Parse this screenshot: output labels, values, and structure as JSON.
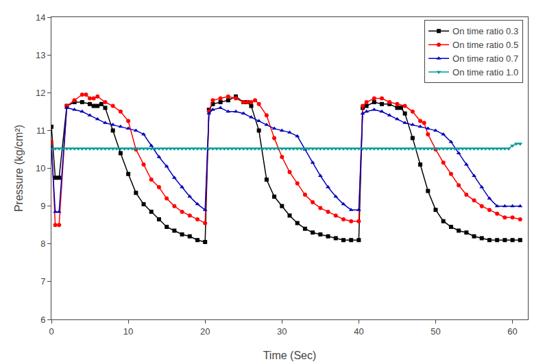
{
  "chart_data": {
    "type": "line",
    "xlabel": "Time (Sec)",
    "ylabel": "Pressure (kg/cm²)",
    "xlim": [
      0,
      62
    ],
    "ylim": [
      6,
      14
    ],
    "xticks": [
      0,
      10,
      20,
      30,
      40,
      50,
      60
    ],
    "yticks": [
      6,
      7,
      8,
      9,
      10,
      11,
      12,
      13,
      14
    ],
    "grid": false,
    "legend": "upper right",
    "series": [
      {
        "name": "On time ratio 0.3",
        "color": "#000000",
        "marker": "square",
        "x": [
          0.0,
          0.5,
          1.0,
          2.0,
          3.0,
          4.0,
          5.0,
          5.5,
          6.0,
          6.5,
          7.0,
          8.0,
          9.0,
          10.0,
          11.0,
          12.0,
          13.0,
          14.0,
          15.0,
          16.0,
          17.0,
          18.0,
          19.0,
          20.0,
          20.5,
          21.0,
          22.0,
          23.0,
          24.0,
          25.0,
          25.5,
          26.0,
          27.0,
          28.0,
          29.0,
          30.0,
          31.0,
          32.0,
          33.0,
          34.0,
          35.0,
          36.0,
          37.0,
          38.0,
          39.0,
          40.0,
          40.5,
          41.0,
          42.0,
          43.0,
          44.0,
          45.0,
          45.5,
          46.0,
          47.0,
          48.0,
          49.0,
          50.0,
          51.0,
          52.0,
          53.0,
          54.0,
          55.0,
          56.0,
          57.0,
          58.0,
          59.0,
          60.0,
          61.0
        ],
        "values": [
          11.1,
          9.75,
          9.75,
          11.65,
          11.75,
          11.75,
          11.7,
          11.65,
          11.65,
          11.7,
          11.6,
          11.0,
          10.4,
          9.85,
          9.35,
          9.05,
          8.85,
          8.65,
          8.45,
          8.35,
          8.25,
          8.2,
          8.1,
          8.05,
          11.55,
          11.7,
          11.75,
          11.8,
          11.9,
          11.75,
          11.75,
          11.65,
          11.0,
          9.7,
          9.25,
          9.0,
          8.75,
          8.55,
          8.4,
          8.3,
          8.25,
          8.2,
          8.15,
          8.1,
          8.1,
          8.1,
          11.6,
          11.65,
          11.75,
          11.7,
          11.7,
          11.6,
          11.6,
          11.45,
          10.8,
          10.1,
          9.4,
          8.9,
          8.6,
          8.45,
          8.35,
          8.3,
          8.2,
          8.15,
          8.1,
          8.1,
          8.1,
          8.1,
          8.1
        ]
      },
      {
        "name": "On time ratio 0.5",
        "color": "#ff0000",
        "marker": "circle",
        "x": [
          0.0,
          0.5,
          1.0,
          2.0,
          3.0,
          4.0,
          4.5,
          5.0,
          5.5,
          6.0,
          7.0,
          8.0,
          9.0,
          10.0,
          11.0,
          12.0,
          13.0,
          14.0,
          15.0,
          16.0,
          17.0,
          18.0,
          19.0,
          20.0,
          20.5,
          21.0,
          22.0,
          23.0,
          24.0,
          25.0,
          25.5,
          26.0,
          26.5,
          27.0,
          28.0,
          29.0,
          30.0,
          31.0,
          32.0,
          33.0,
          34.0,
          35.0,
          36.0,
          37.0,
          38.0,
          39.0,
          40.0,
          40.5,
          41.0,
          42.0,
          43.0,
          44.0,
          45.0,
          46.0,
          47.0,
          48.0,
          48.5,
          49.0,
          50.0,
          51.0,
          52.0,
          53.0,
          54.0,
          55.0,
          56.0,
          57.0,
          58.0,
          59.0,
          60.0,
          61.0
        ],
        "values": [
          10.7,
          8.5,
          8.5,
          11.65,
          11.8,
          11.95,
          11.95,
          11.85,
          11.85,
          11.9,
          11.75,
          11.65,
          11.5,
          11.25,
          10.5,
          10.1,
          9.7,
          9.5,
          9.2,
          9.0,
          8.85,
          8.75,
          8.65,
          8.55,
          11.5,
          11.8,
          11.85,
          11.9,
          11.85,
          11.75,
          11.75,
          11.75,
          11.8,
          11.7,
          11.4,
          10.8,
          10.3,
          9.9,
          9.6,
          9.3,
          9.1,
          8.95,
          8.85,
          8.75,
          8.65,
          8.6,
          8.6,
          11.65,
          11.75,
          11.85,
          11.85,
          11.75,
          11.7,
          11.65,
          11.5,
          11.25,
          11.2,
          10.9,
          10.5,
          10.15,
          9.85,
          9.55,
          9.3,
          9.15,
          9.0,
          8.9,
          8.8,
          8.7,
          8.7,
          8.65
        ]
      },
      {
        "name": "On time ratio 0.7",
        "color": "#0000bb",
        "marker": "triangle-up",
        "x": [
          0.0,
          0.5,
          1.0,
          2.0,
          3.0,
          4.0,
          5.0,
          6.0,
          7.0,
          8.0,
          9.0,
          10.0,
          11.0,
          12.0,
          13.0,
          14.0,
          15.0,
          16.0,
          17.0,
          18.0,
          19.0,
          20.0,
          20.5,
          21.0,
          22.0,
          23.0,
          24.0,
          25.0,
          26.0,
          27.0,
          28.0,
          29.0,
          30.0,
          31.0,
          32.0,
          33.0,
          34.0,
          35.0,
          36.0,
          37.0,
          38.0,
          39.0,
          40.0,
          40.5,
          41.0,
          42.0,
          43.0,
          44.0,
          45.0,
          46.0,
          47.0,
          48.0,
          49.0,
          50.0,
          51.0,
          52.0,
          53.0,
          54.0,
          55.0,
          56.0,
          57.0,
          58.0,
          59.0,
          60.0,
          61.0
        ],
        "values": [
          10.55,
          8.85,
          8.85,
          11.6,
          11.55,
          11.5,
          11.4,
          11.3,
          11.2,
          11.15,
          11.1,
          11.05,
          11.0,
          10.9,
          10.6,
          10.3,
          10.05,
          9.75,
          9.5,
          9.25,
          9.05,
          8.9,
          11.45,
          11.55,
          11.6,
          11.5,
          11.5,
          11.45,
          11.35,
          11.25,
          11.15,
          11.05,
          11.0,
          10.95,
          10.85,
          10.5,
          10.15,
          9.8,
          9.5,
          9.25,
          9.05,
          8.9,
          8.9,
          11.45,
          11.5,
          11.55,
          11.5,
          11.4,
          11.3,
          11.2,
          11.15,
          11.1,
          11.05,
          11.0,
          10.9,
          10.7,
          10.4,
          10.1,
          9.8,
          9.5,
          9.2,
          9.0,
          9.0,
          9.0,
          9.0
        ]
      },
      {
        "name": "On time ratio 1.0",
        "color": "#009999",
        "marker": "triangle-down",
        "x": [
          0.0,
          0.5,
          1.0,
          1.5,
          2.0,
          2.5,
          3.0,
          3.5,
          4.0,
          4.5,
          5.0,
          5.5,
          6.0,
          6.5,
          7.0,
          7.5,
          8.0,
          8.5,
          9.0,
          9.5,
          10.0,
          10.5,
          11.0,
          11.5,
          12.0,
          12.5,
          13.0,
          13.5,
          14.0,
          14.5,
          15.0,
          15.5,
          16.0,
          16.5,
          17.0,
          17.5,
          18.0,
          18.5,
          19.0,
          19.5,
          20.0,
          20.5,
          21.0,
          21.5,
          22.0,
          22.5,
          23.0,
          23.5,
          24.0,
          24.5,
          25.0,
          25.5,
          26.0,
          26.5,
          27.0,
          27.5,
          28.0,
          28.5,
          29.0,
          29.5,
          30.0,
          30.5,
          31.0,
          31.5,
          32.0,
          32.5,
          33.0,
          33.5,
          34.0,
          34.5,
          35.0,
          35.5,
          36.0,
          36.5,
          37.0,
          37.5,
          38.0,
          38.5,
          39.0,
          39.5,
          40.0,
          40.5,
          41.0,
          41.5,
          42.0,
          42.5,
          43.0,
          43.5,
          44.0,
          44.5,
          45.0,
          45.5,
          46.0,
          46.5,
          47.0,
          47.5,
          48.0,
          48.5,
          49.0,
          49.5,
          50.0,
          50.5,
          51.0,
          51.5,
          52.0,
          52.5,
          53.0,
          53.5,
          54.0,
          54.5,
          55.0,
          55.5,
          56.0,
          56.5,
          57.0,
          57.5,
          58.0,
          58.5,
          59.0,
          59.5,
          60.0,
          60.5,
          61.0
        ],
        "values": [
          10.52,
          10.52,
          10.52,
          10.52,
          10.52,
          10.52,
          10.52,
          10.52,
          10.52,
          10.52,
          10.52,
          10.52,
          10.52,
          10.52,
          10.52,
          10.52,
          10.52,
          10.52,
          10.52,
          10.52,
          10.52,
          10.52,
          10.52,
          10.52,
          10.52,
          10.52,
          10.52,
          10.52,
          10.52,
          10.52,
          10.52,
          10.52,
          10.52,
          10.52,
          10.52,
          10.52,
          10.52,
          10.52,
          10.52,
          10.52,
          10.52,
          10.52,
          10.52,
          10.52,
          10.52,
          10.52,
          10.52,
          10.52,
          10.52,
          10.52,
          10.52,
          10.52,
          10.52,
          10.52,
          10.52,
          10.52,
          10.52,
          10.52,
          10.52,
          10.52,
          10.52,
          10.52,
          10.52,
          10.52,
          10.52,
          10.52,
          10.52,
          10.52,
          10.52,
          10.52,
          10.52,
          10.52,
          10.52,
          10.52,
          10.52,
          10.52,
          10.52,
          10.52,
          10.52,
          10.52,
          10.52,
          10.52,
          10.52,
          10.52,
          10.52,
          10.52,
          10.52,
          10.52,
          10.52,
          10.52,
          10.52,
          10.52,
          10.52,
          10.52,
          10.52,
          10.52,
          10.52,
          10.52,
          10.52,
          10.52,
          10.52,
          10.52,
          10.52,
          10.52,
          10.52,
          10.52,
          10.52,
          10.52,
          10.52,
          10.52,
          10.52,
          10.52,
          10.52,
          10.52,
          10.52,
          10.52,
          10.52,
          10.52,
          10.52,
          10.52,
          10.6,
          10.65,
          10.65
        ]
      }
    ]
  }
}
